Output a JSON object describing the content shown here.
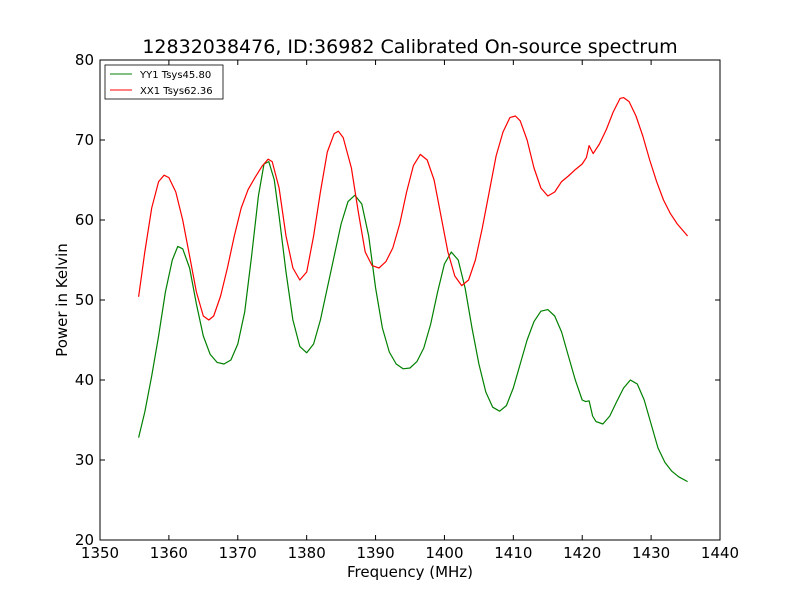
{
  "chart_data": {
    "type": "line",
    "title": "12832038476, ID:36982 Calibrated On-source spectrum",
    "xlabel": "Frequency (MHz)",
    "ylabel": "Power in Kelvin",
    "xlim": [
      1350,
      1440
    ],
    "ylim": [
      20,
      80
    ],
    "xticks": [
      "1350",
      "1360",
      "1370",
      "1380",
      "1390",
      "1400",
      "1410",
      "1420",
      "1430",
      "1440"
    ],
    "yticks": [
      "20",
      "30",
      "40",
      "50",
      "60",
      "70",
      "80"
    ],
    "grid": false,
    "legend_position": "top-left",
    "series": [
      {
        "name": "YY1 Tsys45.80",
        "color": "#008000",
        "points": [
          [
            1355.6,
            32.8
          ],
          [
            1356.5,
            36.0
          ],
          [
            1357.5,
            40.5
          ],
          [
            1358.5,
            45.5
          ],
          [
            1359.5,
            51.0
          ],
          [
            1360.5,
            55.0
          ],
          [
            1361.3,
            56.7
          ],
          [
            1362.0,
            56.4
          ],
          [
            1363.0,
            54.0
          ],
          [
            1364.0,
            49.5
          ],
          [
            1365.0,
            45.5
          ],
          [
            1366.0,
            43.2
          ],
          [
            1367.0,
            42.2
          ],
          [
            1368.0,
            42.0
          ],
          [
            1369.0,
            42.5
          ],
          [
            1370.0,
            44.5
          ],
          [
            1371.0,
            48.5
          ],
          [
            1372.0,
            55.5
          ],
          [
            1373.0,
            63.0
          ],
          [
            1373.8,
            67.0
          ],
          [
            1374.5,
            67.3
          ],
          [
            1375.3,
            65.0
          ],
          [
            1376.0,
            60.5
          ],
          [
            1377.0,
            53.5
          ],
          [
            1378.0,
            47.5
          ],
          [
            1379.0,
            44.2
          ],
          [
            1380.0,
            43.4
          ],
          [
            1381.0,
            44.5
          ],
          [
            1382.0,
            47.5
          ],
          [
            1383.0,
            51.5
          ],
          [
            1384.0,
            55.5
          ],
          [
            1385.0,
            59.5
          ],
          [
            1386.0,
            62.3
          ],
          [
            1387.0,
            63.1
          ],
          [
            1388.0,
            62.0
          ],
          [
            1389.0,
            58.0
          ],
          [
            1390.0,
            51.5
          ],
          [
            1391.0,
            46.5
          ],
          [
            1392.0,
            43.5
          ],
          [
            1393.0,
            42.0
          ],
          [
            1394.0,
            41.4
          ],
          [
            1395.0,
            41.5
          ],
          [
            1396.0,
            42.3
          ],
          [
            1397.0,
            44.0
          ],
          [
            1398.0,
            47.0
          ],
          [
            1399.0,
            51.0
          ],
          [
            1400.0,
            54.5
          ],
          [
            1401.0,
            56.0
          ],
          [
            1402.0,
            55.0
          ],
          [
            1403.0,
            51.5
          ],
          [
            1404.0,
            46.5
          ],
          [
            1405.0,
            42.0
          ],
          [
            1406.0,
            38.5
          ],
          [
            1407.0,
            36.6
          ],
          [
            1408.0,
            36.1
          ],
          [
            1409.0,
            36.8
          ],
          [
            1410.0,
            39.0
          ],
          [
            1411.0,
            42.0
          ],
          [
            1412.0,
            45.0
          ],
          [
            1413.0,
            47.3
          ],
          [
            1414.0,
            48.6
          ],
          [
            1415.0,
            48.8
          ],
          [
            1416.0,
            48.0
          ],
          [
            1417.0,
            46.0
          ],
          [
            1418.0,
            43.0
          ],
          [
            1419.0,
            40.0
          ],
          [
            1420.0,
            37.5
          ],
          [
            1420.5,
            37.3
          ],
          [
            1421.0,
            37.4
          ],
          [
            1421.5,
            35.5
          ],
          [
            1422.0,
            34.8
          ],
          [
            1423.0,
            34.5
          ],
          [
            1424.0,
            35.5
          ],
          [
            1425.0,
            37.3
          ],
          [
            1426.0,
            39.0
          ],
          [
            1427.0,
            40.0
          ],
          [
            1428.0,
            39.5
          ],
          [
            1429.0,
            37.5
          ],
          [
            1430.0,
            34.5
          ],
          [
            1431.0,
            31.5
          ],
          [
            1432.0,
            29.7
          ],
          [
            1433.0,
            28.6
          ],
          [
            1434.0,
            27.9
          ],
          [
            1435.3,
            27.3
          ]
        ]
      },
      {
        "name": "XX1 Tsys62.36",
        "color": "#ff0000",
        "points": [
          [
            1355.6,
            50.4
          ],
          [
            1356.5,
            56.0
          ],
          [
            1357.5,
            61.5
          ],
          [
            1358.5,
            64.8
          ],
          [
            1359.3,
            65.6
          ],
          [
            1360.0,
            65.3
          ],
          [
            1361.0,
            63.5
          ],
          [
            1362.0,
            60.0
          ],
          [
            1363.0,
            55.5
          ],
          [
            1364.0,
            51.0
          ],
          [
            1365.0,
            48.0
          ],
          [
            1365.8,
            47.5
          ],
          [
            1366.5,
            48.0
          ],
          [
            1367.5,
            50.5
          ],
          [
            1368.5,
            54.0
          ],
          [
            1369.5,
            58.0
          ],
          [
            1370.5,
            61.5
          ],
          [
            1371.5,
            63.8
          ],
          [
            1372.5,
            65.3
          ],
          [
            1373.5,
            66.7
          ],
          [
            1374.4,
            67.6
          ],
          [
            1375.0,
            67.3
          ],
          [
            1376.0,
            64.0
          ],
          [
            1377.0,
            58.0
          ],
          [
            1378.0,
            54.0
          ],
          [
            1379.0,
            52.5
          ],
          [
            1380.0,
            53.5
          ],
          [
            1381.0,
            58.0
          ],
          [
            1382.0,
            63.5
          ],
          [
            1383.0,
            68.5
          ],
          [
            1384.0,
            70.8
          ],
          [
            1384.6,
            71.1
          ],
          [
            1385.3,
            70.3
          ],
          [
            1386.5,
            66.5
          ],
          [
            1387.5,
            61.0
          ],
          [
            1388.5,
            56.0
          ],
          [
            1389.5,
            54.3
          ],
          [
            1390.5,
            54.0
          ],
          [
            1391.5,
            54.8
          ],
          [
            1392.5,
            56.5
          ],
          [
            1393.5,
            59.5
          ],
          [
            1394.5,
            63.5
          ],
          [
            1395.5,
            66.8
          ],
          [
            1396.5,
            68.2
          ],
          [
            1397.5,
            67.5
          ],
          [
            1398.5,
            65.0
          ],
          [
            1399.5,
            60.5
          ],
          [
            1400.5,
            56.0
          ],
          [
            1401.5,
            53.0
          ],
          [
            1402.5,
            51.8
          ],
          [
            1403.5,
            52.5
          ],
          [
            1404.5,
            55.0
          ],
          [
            1405.5,
            59.0
          ],
          [
            1406.5,
            63.5
          ],
          [
            1407.5,
            68.0
          ],
          [
            1408.5,
            71.0
          ],
          [
            1409.5,
            72.8
          ],
          [
            1410.3,
            73.0
          ],
          [
            1411.0,
            72.4
          ],
          [
            1412.0,
            70.0
          ],
          [
            1413.0,
            66.5
          ],
          [
            1414.0,
            64.0
          ],
          [
            1415.0,
            63.0
          ],
          [
            1416.0,
            63.5
          ],
          [
            1417.0,
            64.8
          ],
          [
            1418.0,
            65.5
          ],
          [
            1419.0,
            66.3
          ],
          [
            1420.0,
            67.0
          ],
          [
            1420.6,
            67.8
          ],
          [
            1421.0,
            69.3
          ],
          [
            1421.6,
            68.3
          ],
          [
            1422.5,
            69.5
          ],
          [
            1423.5,
            71.3
          ],
          [
            1424.5,
            73.5
          ],
          [
            1425.5,
            75.2
          ],
          [
            1426.0,
            75.3
          ],
          [
            1426.8,
            74.8
          ],
          [
            1427.8,
            73.0
          ],
          [
            1428.8,
            70.5
          ],
          [
            1429.8,
            67.5
          ],
          [
            1430.8,
            64.8
          ],
          [
            1431.8,
            62.5
          ],
          [
            1432.8,
            60.8
          ],
          [
            1433.8,
            59.5
          ],
          [
            1435.3,
            58.0
          ]
        ]
      }
    ]
  }
}
